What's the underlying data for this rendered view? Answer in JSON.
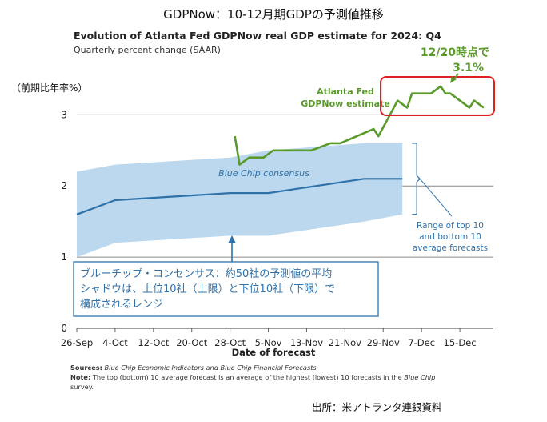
{
  "page_title": "GDPNow：10-12月期GDPの予測値推移",
  "source_note": "出所：米アトランタ連銀資料",
  "chart_data": {
    "type": "line",
    "title": "Evolution of Atlanta Fed GDPNow real GDP estimate for 2024: Q4",
    "subtitle": "Quarterly percent change (SAAR)",
    "ylabel": "（前期比年率%）",
    "xlabel": "Date of forecast",
    "ylim": [
      0,
      3.6
    ],
    "xlim": [
      "2024-09-26",
      "2024-12-22"
    ],
    "y_ticks": [
      0,
      1,
      2,
      3
    ],
    "y_tick_labels": [
      "0",
      "1",
      "2",
      "3"
    ],
    "x_ticks": [
      "2024-09-26",
      "2024-10-04",
      "2024-10-12",
      "2024-10-20",
      "2024-10-28",
      "2024-11-05",
      "2024-11-13",
      "2024-11-21",
      "2024-11-29",
      "2024-12-07",
      "2024-12-15"
    ],
    "x_tick_labels": [
      "26-Sep",
      "4-Oct",
      "12-Oct",
      "20-Oct",
      "28-Oct",
      "5-Nov",
      "13-Nov",
      "21-Nov",
      "29-Nov",
      "7-Dec",
      "15-Dec"
    ],
    "grid": {
      "horizontal": true,
      "vertical": false
    },
    "series": [
      {
        "name": "Atlanta Fed GDPNow estimate",
        "color": "#5a9a2a",
        "points": [
          [
            "2024-10-29",
            2.7
          ],
          [
            "2024-10-30",
            2.3
          ],
          [
            "2024-11-01",
            2.4
          ],
          [
            "2024-11-04",
            2.4
          ],
          [
            "2024-11-06",
            2.5
          ],
          [
            "2024-11-14",
            2.5
          ],
          [
            "2024-11-18",
            2.6
          ],
          [
            "2024-11-20",
            2.6
          ],
          [
            "2024-11-27",
            2.8
          ],
          [
            "2024-11-28",
            2.7
          ],
          [
            "2024-12-02",
            3.2
          ],
          [
            "2024-12-04",
            3.1
          ],
          [
            "2024-12-05",
            3.3
          ],
          [
            "2024-12-09",
            3.3
          ],
          [
            "2024-12-11",
            3.4
          ],
          [
            "2024-12-12",
            3.3
          ],
          [
            "2024-12-13",
            3.3
          ],
          [
            "2024-12-17",
            3.1
          ],
          [
            "2024-12-18",
            3.2
          ],
          [
            "2024-12-20",
            3.1
          ]
        ]
      },
      {
        "name": "Blue Chip consensus",
        "color": "#2f72aa",
        "points": [
          [
            "2024-09-26",
            1.6
          ],
          [
            "2024-10-04",
            1.8
          ],
          [
            "2024-10-28",
            1.9
          ],
          [
            "2024-11-05",
            1.9
          ],
          [
            "2024-11-25",
            2.1
          ],
          [
            "2024-12-03",
            2.1
          ]
        ]
      }
    ],
    "range_band": {
      "color": "#bcd8ee",
      "top": [
        [
          "2024-09-26",
          2.2
        ],
        [
          "2024-10-04",
          2.3
        ],
        [
          "2024-10-28",
          2.4
        ],
        [
          "2024-11-05",
          2.5
        ],
        [
          "2024-11-25",
          2.6
        ],
        [
          "2024-12-03",
          2.6
        ]
      ],
      "bottom": [
        [
          "2024-09-26",
          1.0
        ],
        [
          "2024-10-04",
          1.2
        ],
        [
          "2024-10-28",
          1.3
        ],
        [
          "2024-11-05",
          1.3
        ],
        [
          "2024-11-25",
          1.5
        ],
        [
          "2024-12-03",
          1.6
        ]
      ]
    },
    "annotations": {
      "gdpnow_label": [
        "Atlanta Fed",
        "GDPNow estimate"
      ],
      "consensus_label": "Blue Chip consensus",
      "range_label": [
        "Range of top 10",
        "and bottom 10",
        "average forecasts"
      ],
      "highlight_label": [
        "12/20時点で",
        "3.1%"
      ],
      "jp_box": [
        "ブルーチップ・コンセンサス：約50社の予測値の平均",
        "シャドウは、上位10社（上限）と下位10社（下限）で",
        "構成されるレンジ"
      ]
    },
    "highlight_color": "#e02020",
    "jp_box_color": "#2f72aa"
  },
  "footnotes": {
    "sources_label": "Sources:",
    "sources_text": " Blue Chip Economic Indicators and Blue Chip Financial Forecasts",
    "note_label": "Note:",
    "note_text_1": " The top (bottom) 10 average forecast is an average of the highest (lowest) 10 forecasts in the ",
    "note_text_italic": "Blue Chip",
    "note_text_2": "survey."
  }
}
